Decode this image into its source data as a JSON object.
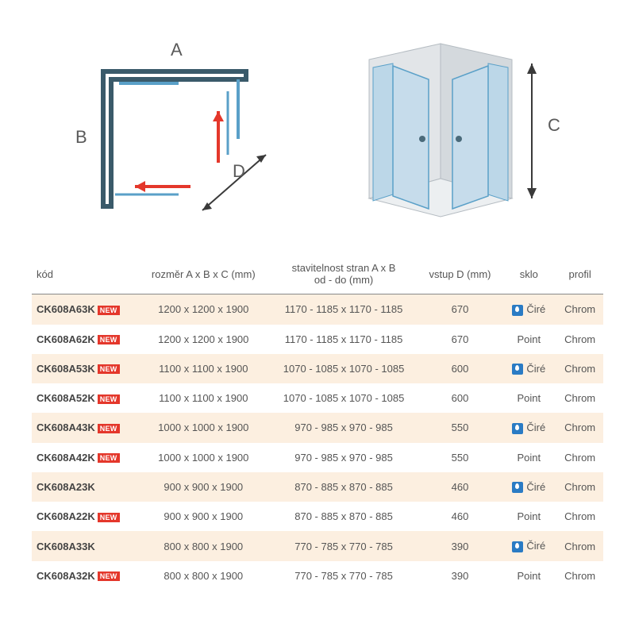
{
  "diagram": {
    "labelA": "A",
    "labelB": "B",
    "labelC": "C",
    "labelD": "D",
    "colors": {
      "line_dark": "#3a5a6a",
      "line_blue": "#5aa0c8",
      "arrow_red": "#e4372b",
      "arrow_dark": "#3a3a3a",
      "enclosure_fill": "#d9dde0",
      "panel_fill": "#b8d4e6",
      "panel_stroke": "#5aa0c8",
      "label_color": "#5a5a5a"
    }
  },
  "table": {
    "headers": {
      "code": "kód",
      "dims": "rozměr A x B x C (mm)",
      "adjust": "stavitelnost stran A x B\nod - do (mm)",
      "entry": "vstup D (mm)",
      "glass": "sklo",
      "profile": "profil"
    },
    "new_label": "NEW",
    "rows": [
      {
        "code": "CK608A63K",
        "new": true,
        "dims": "1200 x 1200 x 1900",
        "adjust": "1170 - 1185 x 1170 - 1185",
        "entry": "670",
        "glass": "Čiré",
        "icon": true,
        "profile": "Chrom",
        "stripe": true
      },
      {
        "code": "CK608A62K",
        "new": true,
        "dims": "1200 x 1200 x 1900",
        "adjust": "1170 - 1185 x 1170 - 1185",
        "entry": "670",
        "glass": "Point",
        "icon": false,
        "profile": "Chrom",
        "stripe": false
      },
      {
        "code": "CK608A53K",
        "new": true,
        "dims": "1100 x 1100 x 1900",
        "adjust": "1070 - 1085 x 1070 - 1085",
        "entry": "600",
        "glass": "Čiré",
        "icon": true,
        "profile": "Chrom",
        "stripe": true
      },
      {
        "code": "CK608A52K",
        "new": true,
        "dims": "1100 x 1100 x 1900",
        "adjust": "1070 - 1085 x 1070 - 1085",
        "entry": "600",
        "glass": "Point",
        "icon": false,
        "profile": "Chrom",
        "stripe": false
      },
      {
        "code": "CK608A43K",
        "new": true,
        "dims": "1000 x 1000 x 1900",
        "adjust": "970 - 985 x 970 - 985",
        "entry": "550",
        "glass": "Čiré",
        "icon": true,
        "profile": "Chrom",
        "stripe": true
      },
      {
        "code": "CK608A42K",
        "new": true,
        "dims": "1000 x 1000 x 1900",
        "adjust": "970 - 985 x 970 - 985",
        "entry": "550",
        "glass": "Point",
        "icon": false,
        "profile": "Chrom",
        "stripe": false
      },
      {
        "code": "CK608A23K",
        "new": false,
        "dims": "900 x 900 x 1900",
        "adjust": "870 - 885 x 870 - 885",
        "entry": "460",
        "glass": "Čiré",
        "icon": true,
        "profile": "Chrom",
        "stripe": true
      },
      {
        "code": "CK608A22K",
        "new": true,
        "dims": "900 x 900 x 1900",
        "adjust": "870 - 885 x 870 - 885",
        "entry": "460",
        "glass": "Point",
        "icon": false,
        "profile": "Chrom",
        "stripe": false
      },
      {
        "code": "CK608A33K",
        "new": false,
        "dims": "800 x 800 x 1900",
        "adjust": "770 - 785 x 770 - 785",
        "entry": "390",
        "glass": "Čiré",
        "icon": true,
        "profile": "Chrom",
        "stripe": true
      },
      {
        "code": "CK608A32K",
        "new": true,
        "dims": "800 x 800 x 1900",
        "adjust": "770 - 785 x 770 - 785",
        "entry": "390",
        "glass": "Point",
        "icon": false,
        "profile": "Chrom",
        "stripe": false
      }
    ]
  }
}
